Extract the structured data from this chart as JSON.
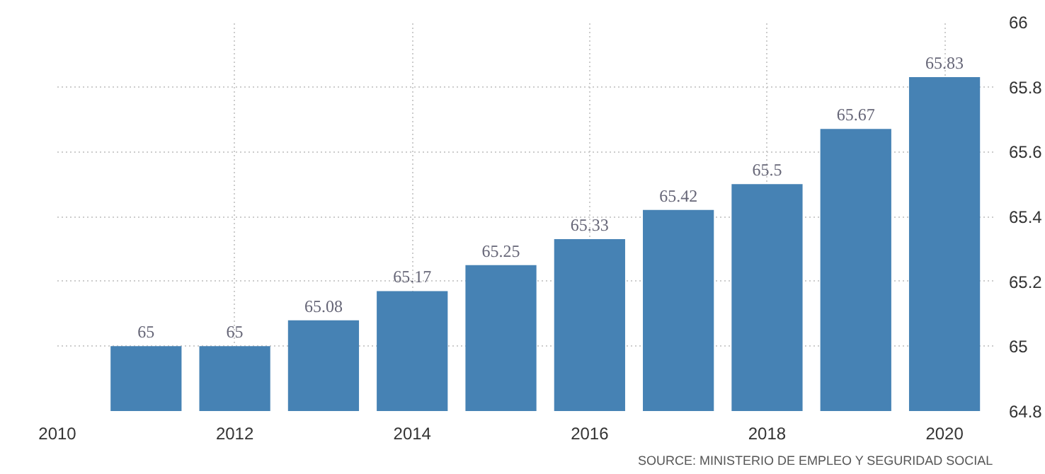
{
  "chart_data": {
    "type": "bar",
    "x": [
      2011,
      2012,
      2013,
      2014,
      2015,
      2016,
      2017,
      2018,
      2019,
      2020
    ],
    "values": [
      65,
      65,
      65.08,
      65.17,
      65.25,
      65.33,
      65.42,
      65.5,
      65.67,
      65.83
    ],
    "color": "#4682b4",
    "data_labels": true,
    "xlim": [
      2010,
      2020.55
    ],
    "xticks": [
      2010,
      2012,
      2014,
      2016,
      2018,
      2020
    ],
    "ylim": [
      64.8,
      66
    ],
    "yticks": [
      64.8,
      65,
      65.2,
      65.4,
      65.6,
      65.8,
      66
    ],
    "grid": true,
    "annotations": [
      "SOURCE: MINISTERIO DE EMPLEO Y SEGURIDAD SOCIAL"
    ]
  }
}
